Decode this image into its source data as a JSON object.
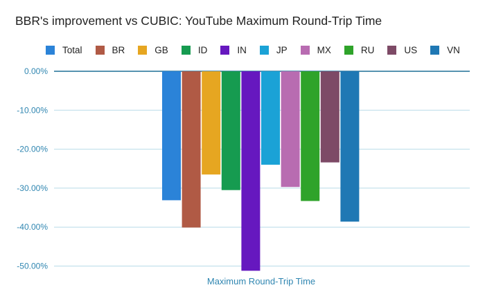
{
  "chart_data": {
    "type": "bar",
    "title": "BBR's improvement vs CUBIC: YouTube Maximum Round-Trip Time",
    "categories": [
      "Maximum Round-Trip Time"
    ],
    "series": [
      {
        "name": "Total",
        "values": [
          -33.1
        ],
        "color": "#2b83d8"
      },
      {
        "name": "BR",
        "values": [
          -40.1
        ],
        "color": "#b05a45"
      },
      {
        "name": "GB",
        "values": [
          -26.5
        ],
        "color": "#e6a621"
      },
      {
        "name": "ID",
        "values": [
          -30.5
        ],
        "color": "#169b50"
      },
      {
        "name": "IN",
        "values": [
          -51.2
        ],
        "color": "#6618bf"
      },
      {
        "name": "JP",
        "values": [
          -24.0
        ],
        "color": "#1ba2d6"
      },
      {
        "name": "MX",
        "values": [
          -29.7
        ],
        "color": "#b86cb1"
      },
      {
        "name": "RU",
        "values": [
          -33.3
        ],
        "color": "#2fa32a"
      },
      {
        "name": "US",
        "values": [
          -23.4
        ],
        "color": "#7d4a66"
      },
      {
        "name": "VN",
        "values": [
          -38.6
        ],
        "color": "#1f78b4"
      }
    ],
    "y_ticks": [
      "0.00%",
      "-10.00%",
      "-20.00%",
      "-30.00%",
      "-40.00%",
      "-50.00%"
    ],
    "ylim": [
      -52,
      0
    ],
    "grid": true,
    "legend_position": "top",
    "colors": {
      "axis_text": "#2f86b1",
      "grid": "#b7dbe8",
      "zero_line": "#1d6f95"
    }
  }
}
